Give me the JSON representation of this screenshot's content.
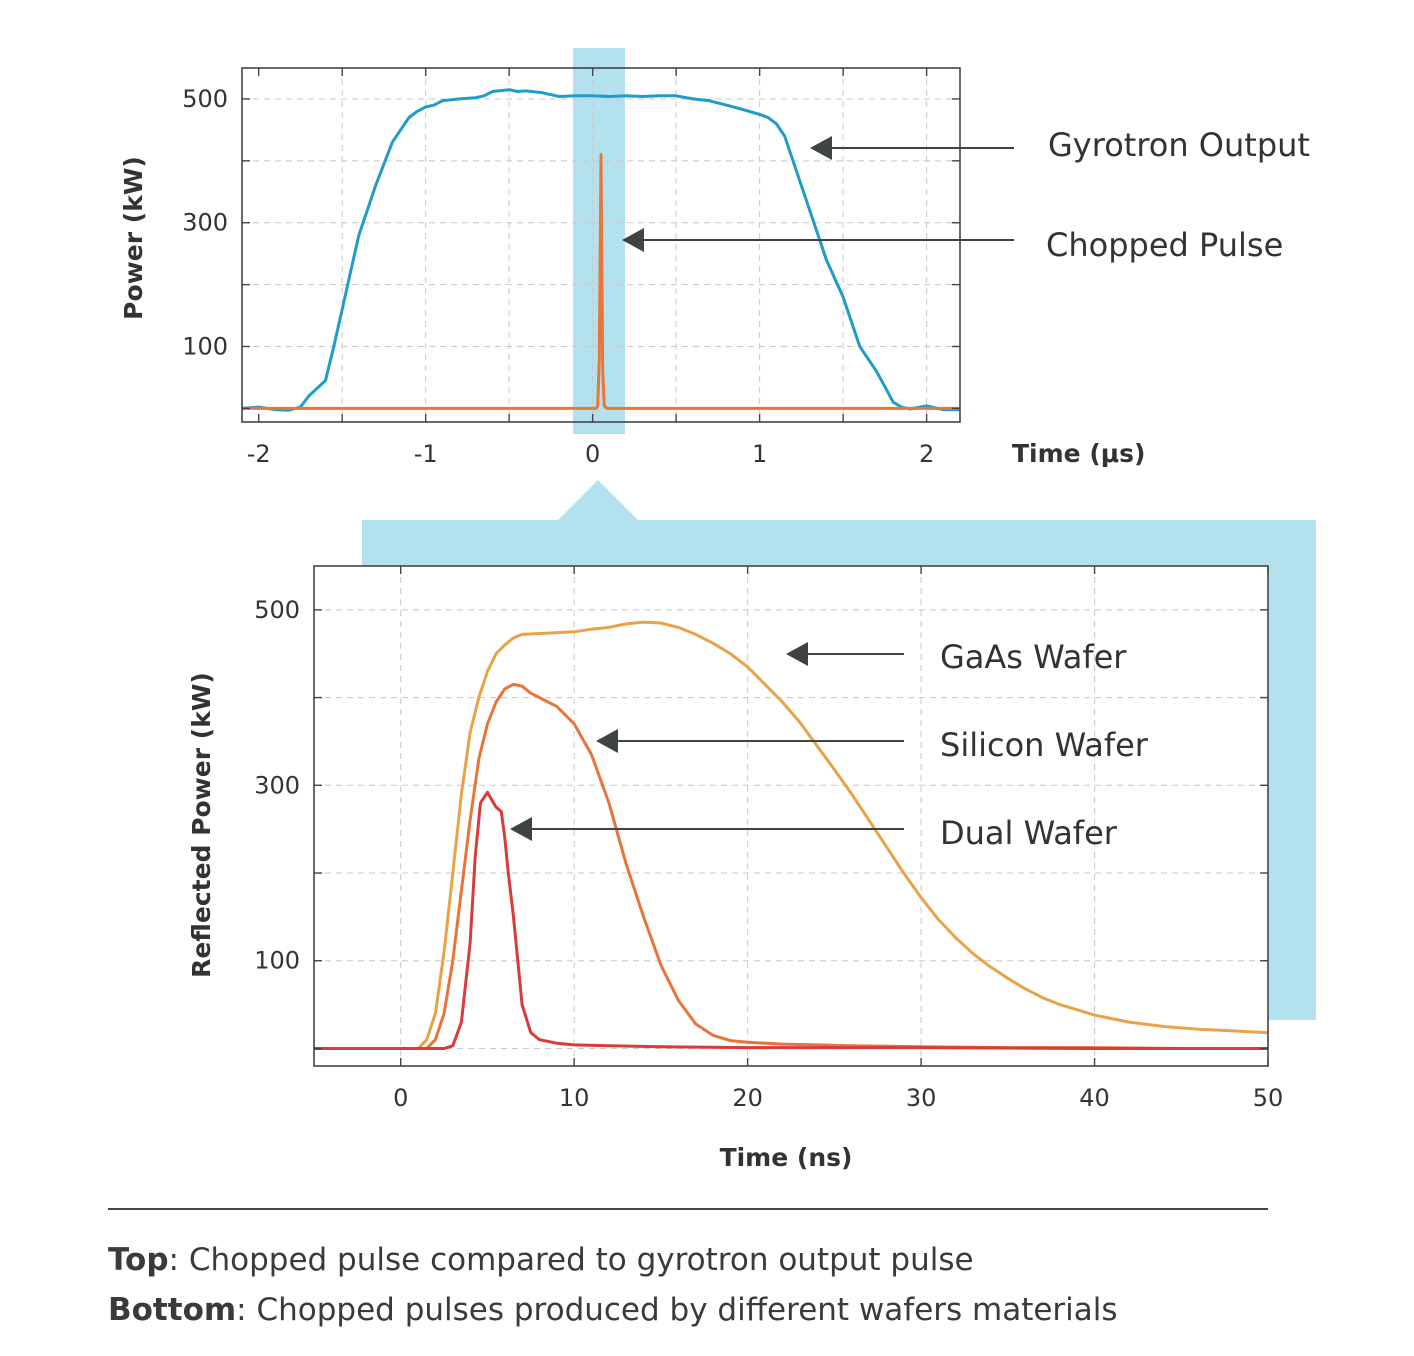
{
  "colors": {
    "highlight": "#b3e2ee",
    "gyrotron": "#1f9cc8",
    "chopped": "#e8753a",
    "gaas": "#e9a247",
    "silicon": "#e8743a",
    "dual": "#d93b3b",
    "arrow": "#3e4443",
    "grid": "#c8c8c8"
  },
  "chart_data": [
    {
      "type": "line",
      "xlabel": "Time (μs)",
      "ylabel": "Power (kW)",
      "xlim": [
        -2.1,
        2.2
      ],
      "ylim": [
        -22,
        550
      ],
      "xticks": [
        -2,
        -1,
        0,
        1,
        2
      ],
      "xtick_labels": [
        "-2",
        "-1",
        "0",
        "1",
        "2"
      ],
      "yticks": [
        100,
        300,
        500
      ],
      "ytick_labels": [
        "100",
        "300",
        "500"
      ],
      "grid": true,
      "highlight_region": [
        -0.1,
        0.2
      ],
      "series": [
        {
          "name": "Gyrotron Output",
          "color_key": "gyrotron",
          "x": [
            -2.1,
            -2.0,
            -1.9,
            -1.82,
            -1.75,
            -1.7,
            -1.6,
            -1.55,
            -1.5,
            -1.45,
            -1.4,
            -1.3,
            -1.2,
            -1.1,
            -1.05,
            -1.0,
            -0.95,
            -0.9,
            -0.8,
            -0.7,
            -0.65,
            -0.6,
            -0.5,
            -0.45,
            -0.4,
            -0.3,
            -0.2,
            -0.1,
            0.0,
            0.1,
            0.2,
            0.3,
            0.4,
            0.5,
            0.6,
            0.7,
            0.8,
            0.9,
            1.0,
            1.05,
            1.1,
            1.15,
            1.2,
            1.25,
            1.3,
            1.35,
            1.4,
            1.5,
            1.6,
            1.7,
            1.75,
            1.8,
            1.85,
            1.9,
            2.0,
            2.1,
            2.2
          ],
          "y": [
            0,
            2,
            -2,
            -3,
            2,
            20,
            45,
            100,
            160,
            220,
            280,
            360,
            430,
            470,
            480,
            487,
            490,
            497,
            500,
            502,
            505,
            512,
            515,
            512,
            513,
            510,
            504,
            505,
            505,
            504,
            505,
            504,
            505,
            505,
            500,
            497,
            490,
            483,
            475,
            470,
            460,
            440,
            400,
            360,
            320,
            280,
            240,
            180,
            100,
            60,
            35,
            10,
            2,
            -1,
            4,
            -2,
            -2
          ]
        },
        {
          "name": "Chopped Pulse",
          "color_key": "chopped",
          "x": [
            -2.1,
            0.02,
            0.03,
            0.04,
            0.05,
            0.06,
            0.07,
            0.08,
            0.09,
            2.2
          ],
          "y": [
            0,
            0,
            4,
            80,
            410,
            60,
            4,
            1,
            0,
            0
          ]
        }
      ]
    },
    {
      "type": "line",
      "xlabel": "Time (ns)",
      "ylabel": "Reflected Power (kW)",
      "xlim": [
        -5,
        50
      ],
      "ylim": [
        -20,
        550
      ],
      "xticks": [
        0,
        10,
        20,
        30,
        40,
        50
      ],
      "xtick_labels": [
        "0",
        "10",
        "20",
        "30",
        "40",
        "50"
      ],
      "yticks": [
        100,
        300,
        500
      ],
      "ytick_labels": [
        "100",
        "300",
        "500"
      ],
      "grid": true,
      "series": [
        {
          "name": "GaAs Wafer",
          "color_key": "gaas",
          "x": [
            -5,
            1,
            1.5,
            2,
            2.5,
            3,
            3.5,
            4,
            4.5,
            5,
            5.5,
            6,
            6.5,
            7,
            8,
            9,
            10,
            11,
            12,
            13,
            14,
            15,
            16,
            17,
            18,
            19,
            20,
            21,
            22,
            23,
            24,
            25,
            26,
            27,
            28,
            29,
            30,
            31,
            32,
            33,
            34,
            35,
            36,
            37,
            38,
            40,
            42,
            44,
            46,
            48,
            50
          ],
          "y": [
            0,
            0,
            10,
            40,
            110,
            200,
            290,
            360,
            400,
            430,
            450,
            460,
            468,
            472,
            473,
            474,
            475,
            478,
            480,
            484,
            486,
            485,
            480,
            472,
            462,
            450,
            435,
            415,
            395,
            372,
            345,
            318,
            290,
            260,
            230,
            200,
            172,
            147,
            126,
            108,
            93,
            80,
            68,
            58,
            50,
            38,
            30,
            25,
            22,
            20,
            18
          ]
        },
        {
          "name": "Silicon Wafer",
          "color_key": "silicon",
          "x": [
            -5,
            1.5,
            2,
            2.5,
            3,
            3.5,
            4,
            4.5,
            5,
            5.5,
            6,
            6.5,
            7,
            7.5,
            8,
            9,
            10,
            11,
            12,
            13,
            14,
            15,
            16,
            17,
            18,
            19,
            20,
            22,
            24,
            26,
            30,
            35,
            40,
            45,
            50
          ],
          "y": [
            0,
            0,
            10,
            40,
            100,
            180,
            260,
            330,
            370,
            395,
            410,
            415,
            413,
            405,
            400,
            390,
            370,
            335,
            280,
            210,
            150,
            95,
            55,
            28,
            15,
            9,
            7,
            5,
            4,
            3,
            2,
            1,
            1,
            0,
            0
          ]
        },
        {
          "name": "Dual Wafer",
          "color_key": "dual",
          "x": [
            -5,
            2.5,
            3,
            3.5,
            4,
            4.3,
            4.6,
            5.0,
            5.2,
            5.5,
            5.8,
            6.0,
            6.2,
            6.5,
            7,
            7.5,
            8,
            9,
            10,
            12,
            15,
            20,
            30,
            40,
            50
          ],
          "y": [
            0,
            0,
            3,
            30,
            120,
            220,
            280,
            292,
            285,
            275,
            270,
            240,
            200,
            150,
            50,
            18,
            10,
            6,
            4,
            3,
            2,
            1,
            1,
            0,
            0
          ]
        }
      ]
    }
  ],
  "annotations_top": [
    {
      "id": "gyrotron-output",
      "label": "Gyrotron Output"
    },
    {
      "id": "chopped-pulse",
      "label": "Chopped Pulse"
    }
  ],
  "annotations_bottom": [
    {
      "id": "gaas-wafer",
      "label": "GaAs Wafer"
    },
    {
      "id": "silicon-wafer",
      "label": "Silicon Wafer"
    },
    {
      "id": "dual-wafer",
      "label": "Dual Wafer"
    }
  ],
  "caption": {
    "top_bold": "Top",
    "top_text": ": Chopped pulse compared to gyrotron output pulse",
    "bottom_bold": "Bottom",
    "bottom_text": ": Chopped pulses produced by different wafers materials"
  }
}
